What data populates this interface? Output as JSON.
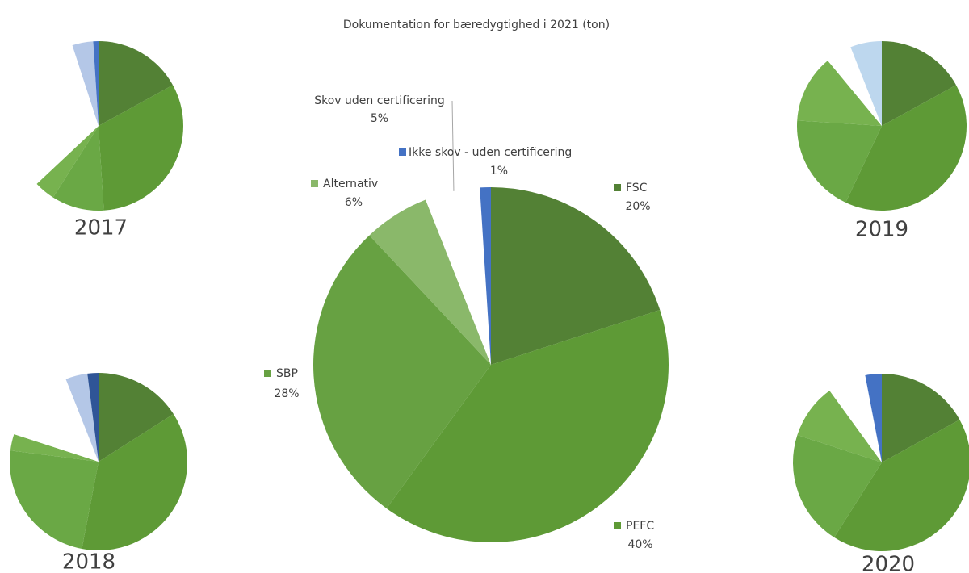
{
  "chart_data": [
    {
      "type": "pie",
      "title": "Dokumentation for bæredygtighed i 2021 (ton)",
      "categories": [
        "FSC",
        "PEFC",
        "SBP",
        "Alternativ",
        "Skov uden certificering",
        "Ikke skov - uden certificering"
      ],
      "values": [
        20,
        40,
        28,
        6,
        5,
        1
      ],
      "value_labels": [
        "20%",
        "40%",
        "28%",
        "6%",
        "5%",
        "1%"
      ],
      "colors": [
        "#538135",
        "#5e9a36",
        "#67a142",
        "#8ab86a",
        "#ffffff",
        "#4472c4"
      ]
    },
    {
      "type": "pie",
      "title": "2017",
      "values": [
        17,
        32,
        10,
        4,
        32,
        4,
        1
      ],
      "colors": [
        "#538135",
        "#5e9a36",
        "#6aa845",
        "#77b24f",
        "#ffffff",
        "#b4c7e7",
        "#4472c4"
      ]
    },
    {
      "type": "pie",
      "title": "2018",
      "values": [
        16,
        37,
        24,
        3,
        14,
        4,
        2
      ],
      "colors": [
        "#538135",
        "#5e9a36",
        "#6aa845",
        "#77b24f",
        "#ffffff",
        "#b4c7e7",
        "#2f5597"
      ]
    },
    {
      "type": "pie",
      "title": "2019",
      "values": [
        17,
        40,
        19,
        13,
        5,
        6
      ],
      "colors": [
        "#538135",
        "#5e9a36",
        "#6aa845",
        "#77b24f",
        "#ffffff",
        "#bdd7ee"
      ]
    },
    {
      "type": "pie",
      "title": "2020",
      "values": [
        17,
        42,
        21,
        10,
        7,
        3
      ],
      "colors": [
        "#538135",
        "#5e9a36",
        "#6aa845",
        "#77b24f",
        "#ffffff",
        "#4472c4"
      ]
    }
  ]
}
